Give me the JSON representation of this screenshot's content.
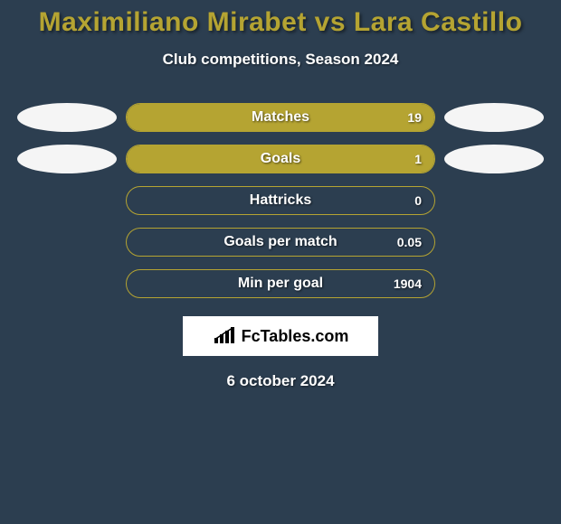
{
  "title_color": "#b5a432",
  "title": "Maximiliano Mirabet vs Lara Castillo",
  "subtitle": "Club competitions, Season 2024",
  "bar_border_color": "#b5a432",
  "fill_color": "#b5a432",
  "background_color": "#2c3e50",
  "ellipse_color": "#f5f5f5",
  "rows": [
    {
      "label": "Matches",
      "value": "19",
      "fill_pct": 100,
      "left_ellipse": true,
      "right_ellipse": true
    },
    {
      "label": "Goals",
      "value": "1",
      "fill_pct": 100,
      "left_ellipse": true,
      "right_ellipse": true
    },
    {
      "label": "Hattricks",
      "value": "0",
      "fill_pct": 0,
      "left_ellipse": false,
      "right_ellipse": false
    },
    {
      "label": "Goals per match",
      "value": "0.05",
      "fill_pct": 0,
      "left_ellipse": false,
      "right_ellipse": false
    },
    {
      "label": "Min per goal",
      "value": "1904",
      "fill_pct": 0,
      "left_ellipse": false,
      "right_ellipse": false
    }
  ],
  "logo_text": "FcTables.com",
  "date": "6 october 2024"
}
